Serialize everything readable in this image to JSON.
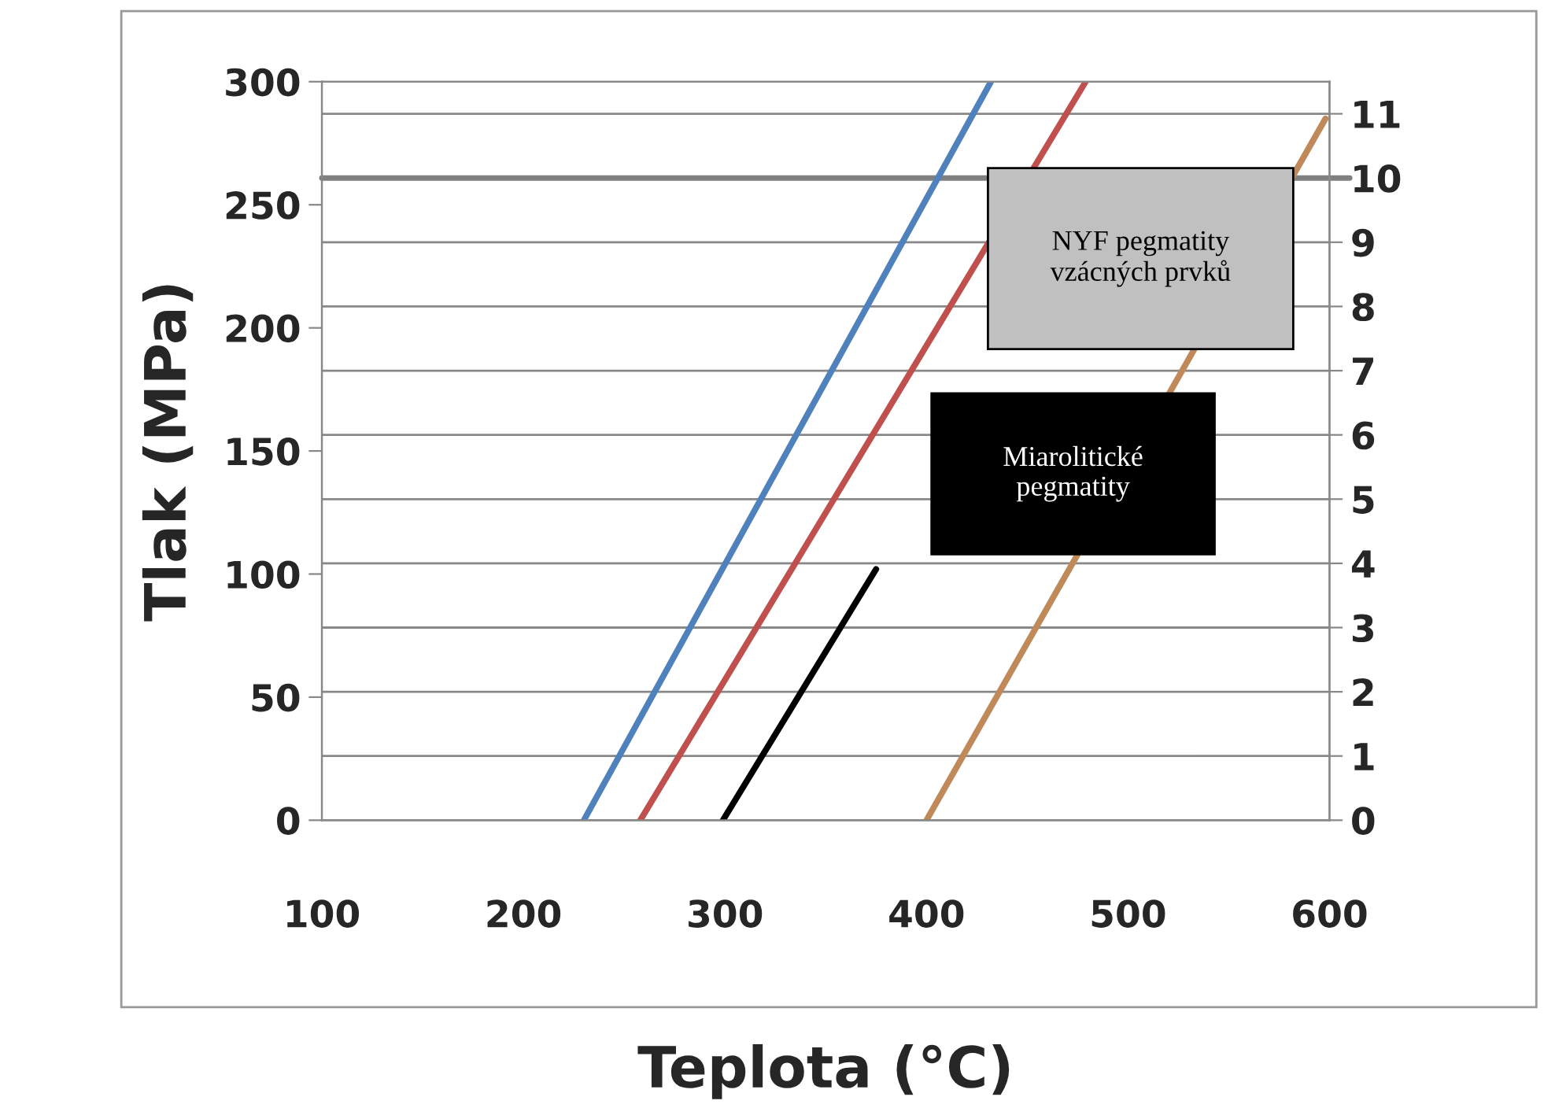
{
  "chart_data": {
    "type": "line",
    "xlabel": "Teplota (°C)",
    "ylabel": "Tlak (MPa)",
    "series": [
      {
        "color": "#4f81bd",
        "x": [
          230,
          432
        ],
        "values": [
          0,
          300
        ]
      },
      {
        "color": "#c0504d",
        "x": [
          258,
          479
        ],
        "values": [
          0,
          300
        ]
      },
      {
        "color": "#000000",
        "x": [
          299,
          375
        ],
        "values": [
          0,
          102
        ]
      },
      {
        "color": "#c0895a",
        "x": [
          400,
          598
        ],
        "values": [
          0,
          285
        ]
      }
    ],
    "xlim": [
      100,
      600
    ],
    "xticks": [
      100,
      200,
      300,
      400,
      500,
      600
    ],
    "ylim": [
      0,
      300
    ],
    "yticks": [
      0,
      50,
      100,
      150,
      200,
      250,
      300
    ],
    "y2lim": [
      0,
      11.5
    ],
    "y2ticks": [
      0,
      1,
      2,
      3,
      4,
      5,
      6,
      7,
      8,
      9,
      10,
      11
    ],
    "ref_lines": [
      {
        "axis": "y2",
        "value": 10,
        "color": "#808080"
      }
    ],
    "grid": "y",
    "annotations": [
      "NYF pegmatity\nvzácných prvků",
      "Miarolitické\npegmatity"
    ]
  }
}
